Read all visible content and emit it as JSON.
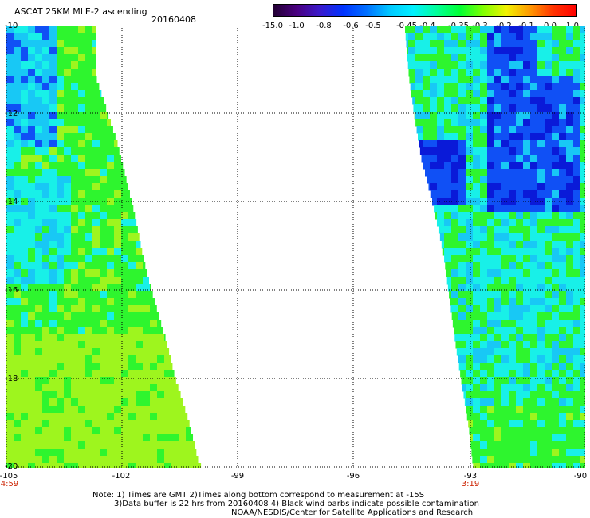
{
  "title": "ASCAT 25KM MLE-2 ascending",
  "date": "20160408",
  "colorbar": {
    "labels": [
      "-15.0",
      "-1.0",
      "-0.8",
      "-0.6",
      "-0.5",
      "-0.45",
      "-0.4",
      "-0.35",
      "-0.3",
      "-0.2",
      "-0.1",
      "0.0",
      "1.0"
    ],
    "colors": [
      "#220033",
      "#4a0080",
      "#3a1acc",
      "#0033ff",
      "#0070ff",
      "#00c8ff",
      "#00f0ff",
      "#00ff99",
      "#00ff33",
      "#80ff00",
      "#f2f200",
      "#ff9900",
      "#ff3300",
      "#ff0000"
    ]
  },
  "map": {
    "lat_labels": [
      "-10",
      "-12",
      "-14",
      "-16",
      "-18",
      "-20"
    ],
    "lon_labels": [
      "-105",
      "-102",
      "-99",
      "-96",
      "-93",
      "-90"
    ],
    "grid": true,
    "swath_colors": {
      "lime": "#9ef51e",
      "green": "#2ef52e",
      "cyan": "#18f0e8",
      "lightblue": "#18c8f5",
      "blue": "#1050f5",
      "navy": "#0a1ad8"
    }
  },
  "times": {
    "left": "4:59",
    "right": "3:19"
  },
  "notes": [
    "Note: 1) Times are GMT 2)Times along bottom correspond to measurement at -15S",
    "3)Data buffer is 22 hrs from 20160408 4) Black wind barbs indicate possible contamination",
    "NOAA/NESDIS/Center for Satellite Applications and Research"
  ]
}
